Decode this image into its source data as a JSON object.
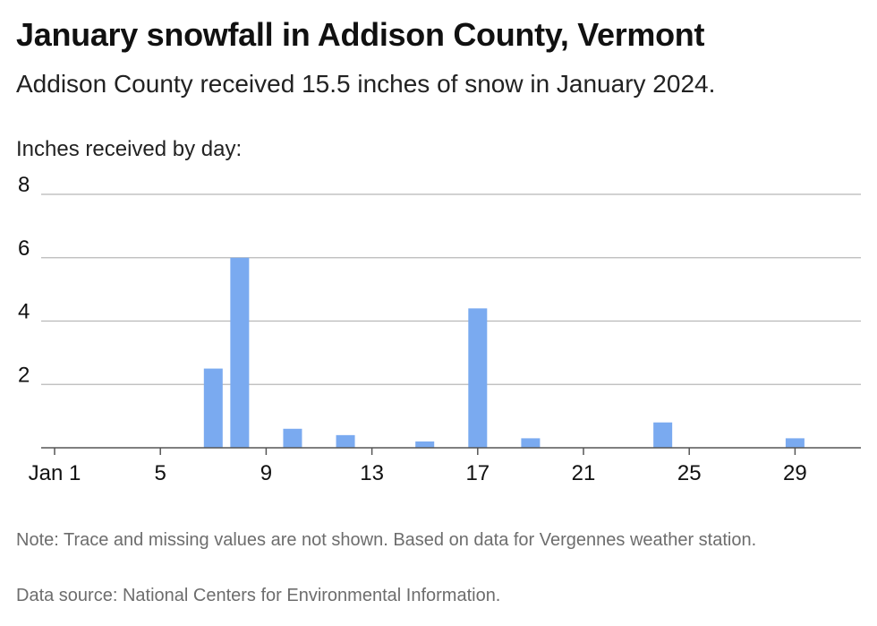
{
  "header": {
    "title": "January snowfall in Addison County, Vermont",
    "subtitle": "Addison County received 15.5 inches of snow in January 2024."
  },
  "footer": {
    "note": "Note: Trace and missing values are not shown. Based on data for Vergennes weather station.",
    "source": "Data source: National Centers for Environmental Information."
  },
  "chart_data": {
    "type": "bar",
    "title": "January snowfall in Addison County, Vermont",
    "subtitle": "Addison County received 15.5 inches of snow in January 2024.",
    "ylabel": "Inches received by day:",
    "xlabel": "",
    "x": [
      7,
      8,
      10,
      12,
      15,
      17,
      19,
      24,
      29
    ],
    "values": [
      2.5,
      6.0,
      0.6,
      0.4,
      0.2,
      4.4,
      0.3,
      0.8,
      0.3
    ],
    "x_range": [
      1,
      31
    ],
    "x_ticks": [
      1,
      5,
      9,
      13,
      17,
      21,
      25,
      29
    ],
    "x_tick_labels": [
      "Jan 1",
      "5",
      "9",
      "13",
      "17",
      "21",
      "25",
      "29"
    ],
    "y_ticks": [
      2,
      4,
      6,
      8
    ],
    "ylim": [
      0,
      8
    ],
    "grid": true,
    "bar_color": "#7aaaf0",
    "grid_color": "#b8b8b8",
    "axis_color": "#555555"
  }
}
